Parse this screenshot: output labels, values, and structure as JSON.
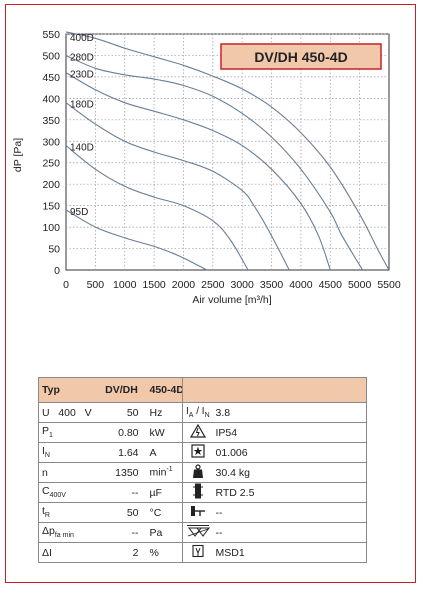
{
  "chart_data": {
    "type": "line",
    "title": "DV/DH 450-4D",
    "xlabel": "Air volume [m³/h]",
    "ylabel": "dP [Pa]",
    "xlim": [
      0,
      5500
    ],
    "ylim": [
      0,
      550
    ],
    "xticks": [
      0,
      500,
      1000,
      1500,
      2000,
      2500,
      3000,
      3500,
      4000,
      4500,
      5000,
      5500
    ],
    "yticks": [
      0,
      50,
      100,
      150,
      200,
      250,
      300,
      350,
      400,
      450,
      500,
      550
    ],
    "grid": true,
    "legend": "none",
    "series": [
      {
        "name": "400D",
        "x": [
          0,
          500,
          1000,
          1500,
          2000,
          2500,
          3000,
          3500,
          4000,
          4500,
          5000,
          5300,
          5500
        ],
        "y": [
          555,
          540,
          517,
          497,
          477,
          452,
          422,
          380,
          320,
          240,
          130,
          50,
          0
        ]
      },
      {
        "name": "280D",
        "x": [
          0,
          500,
          1000,
          1500,
          2000,
          2500,
          3000,
          3500,
          4000,
          4500,
          4700,
          5050
        ],
        "y": [
          500,
          470,
          455,
          445,
          430,
          405,
          365,
          310,
          235,
          135,
          80,
          0
        ]
      },
      {
        "name": "230D",
        "x": [
          0,
          500,
          1000,
          1500,
          2000,
          2500,
          3000,
          3500,
          4000,
          4300,
          4500
        ],
        "y": [
          460,
          420,
          390,
          370,
          350,
          325,
          290,
          235,
          155,
          80,
          0
        ]
      },
      {
        "name": "180D",
        "x": [
          0,
          500,
          1000,
          1500,
          2000,
          2500,
          3000,
          3200,
          3500,
          3800
        ],
        "y": [
          390,
          340,
          300,
          275,
          255,
          230,
          185,
          150,
          80,
          0
        ]
      },
      {
        "name": "140D",
        "x": [
          0,
          500,
          1000,
          1500,
          2000,
          2500,
          2800,
          3100
        ],
        "y": [
          290,
          235,
          195,
          170,
          150,
          115,
          70,
          0
        ]
      },
      {
        "name": "95D",
        "x": [
          0,
          500,
          1000,
          1500,
          1800,
          2000,
          2400
        ],
        "y": [
          140,
          100,
          75,
          55,
          40,
          28,
          0
        ]
      }
    ]
  },
  "labels": {
    "title": "DV/DH 450-4D",
    "xlabel": "Air volume [m³/h]",
    "ylabel": "dP [Pa]"
  },
  "colors": {
    "frame": "#c8202a",
    "title_bg": "#f2c8ab",
    "title_border": "#c8202a",
    "header_bg": "#f2c8ab",
    "curve": "#6b7f95",
    "grid": "#9a9a9a"
  },
  "spec": {
    "header": {
      "typ": "Typ",
      "model_a": "DV/DH",
      "model_b": "450-4D"
    },
    "left": [
      {
        "label": "U",
        "sub": "",
        "extra": "400   V",
        "value": "50",
        "unit": "Hz"
      },
      {
        "label": "P",
        "sub": "1",
        "extra": "",
        "value": "0.80",
        "unit": "kW"
      },
      {
        "label": "I",
        "sub": "N",
        "extra": "",
        "value": "1.64",
        "unit": "A"
      },
      {
        "label": "n",
        "sub": "",
        "extra": "",
        "value": "1350",
        "unit": "min"
      },
      {
        "label": "C",
        "sub": "400V",
        "extra": "",
        "value": "--",
        "unit": "µF"
      },
      {
        "label": "t",
        "sub": "R",
        "extra": "",
        "value": "50",
        "unit": "°C"
      },
      {
        "label": "Δp",
        "sub": "fa min",
        "extra": "",
        "value": "--",
        "unit": "Pa"
      },
      {
        "label": "ΔI",
        "sub": "",
        "extra": "",
        "value": "2",
        "unit": "%"
      }
    ],
    "min_sup": "-1",
    "ratio": {
      "a": "I",
      "a_sub": "A",
      "sep": " / ",
      "b": "I",
      "b_sub": "N"
    },
    "right": [
      {
        "icon": "current-ratio",
        "value": "3.8"
      },
      {
        "icon": "warning-triangle-icon",
        "value": "IP54"
      },
      {
        "icon": "star-box-icon",
        "value": "01.006"
      },
      {
        "icon": "weight-icon",
        "value": "30.4 kg"
      },
      {
        "icon": "thermal-contact-icon",
        "value": "RTD 2.5"
      },
      {
        "icon": "thermistor-icon",
        "value": "--"
      },
      {
        "icon": "motor-protection-icon",
        "value": "--"
      },
      {
        "icon": "switch-icon",
        "value": "MSD1"
      }
    ]
  }
}
